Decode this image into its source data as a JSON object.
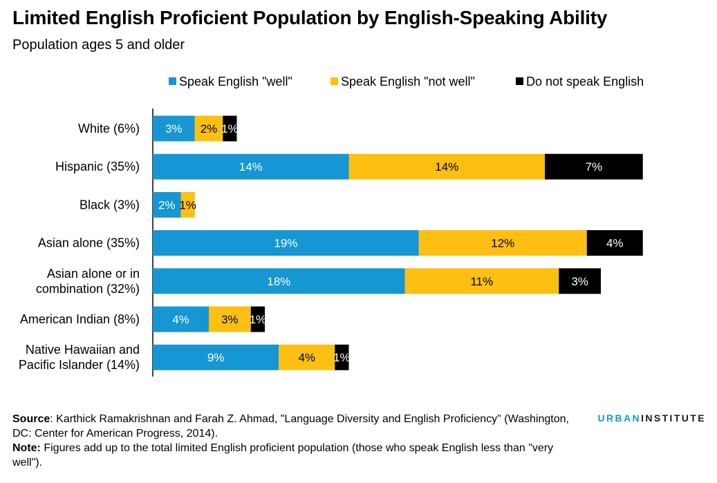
{
  "chart_data": {
    "type": "bar",
    "orientation": "horizontal",
    "stacked": true,
    "title": "Limited English Proficient Population by English-Speaking Ability",
    "subtitle": "Population ages 5 and older",
    "categories": [
      [
        "White (6%)"
      ],
      [
        "Hispanic (35%)"
      ],
      [
        "Black (3%)"
      ],
      [
        "Asian alone (35%)"
      ],
      [
        "Asian alone or in",
        "combination (32%)"
      ],
      [
        "American Indian (8%)"
      ],
      [
        "Native Hawaiian and",
        "Pacific Islander (14%)"
      ]
    ],
    "series": [
      {
        "name": "Speak English \"well\"",
        "color": "#1696d2",
        "text_color": "#ffffff",
        "values": [
          3,
          14,
          2,
          19,
          18,
          4,
          9
        ]
      },
      {
        "name": "Speak English \"not well\"",
        "color": "#fdbf11",
        "text_color": "#000000",
        "values": [
          2,
          14,
          1,
          12,
          11,
          3,
          4
        ]
      },
      {
        "name": "Do not speak English",
        "color": "#000000",
        "text_color": "#ffffff",
        "values": [
          1,
          7,
          0,
          4,
          3,
          1,
          1
        ]
      }
    ],
    "value_suffix": "%",
    "xlim": [
      0,
      35
    ],
    "legend_position": "top",
    "grid": false
  },
  "footer": {
    "source_label": "Source",
    "source_text": ": Karthick Ramakrishnan and Farah Z. Ahmad, \"Language Diversity and English Proficiency\" (Washington, DC: Center for American Progress, 2014).",
    "note_label": "Note:",
    "note_text": " Figures add up to the total limited English proficient population (those who speak English less than \"very well\")."
  },
  "logo": {
    "part1": "URBAN",
    "part2": "INSTITUTE"
  }
}
